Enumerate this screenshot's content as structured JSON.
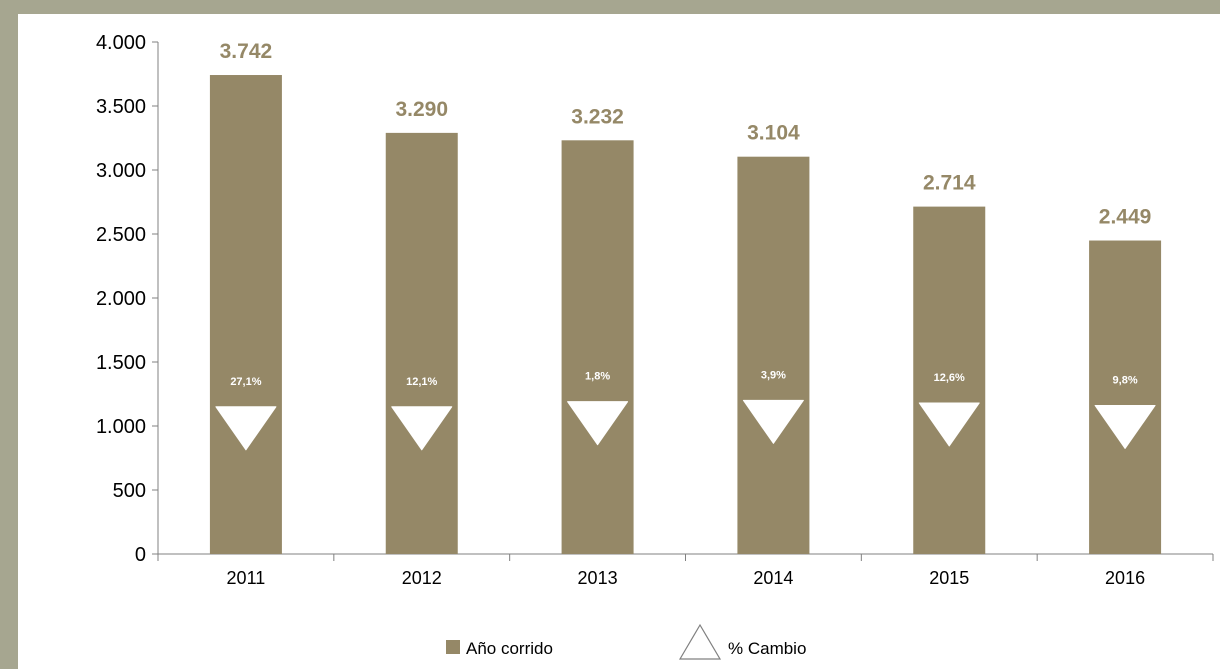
{
  "colors": {
    "bar": "#958867",
    "value_label": "#958867",
    "marker": "#ffffff",
    "axis": "#808080",
    "frame_background": "#a6a690"
  },
  "chart_data": {
    "type": "bar",
    "categories": [
      "2011",
      "2012",
      "2013",
      "2014",
      "2015",
      "2016"
    ],
    "series": [
      {
        "name": "Año corrido",
        "values": [
          3742,
          3290,
          3232,
          3104,
          2714,
          2449
        ],
        "labels": [
          "3.742",
          "3.290",
          "3.232",
          "3.104",
          "2.714",
          "2.449"
        ]
      },
      {
        "name": "% Cambio",
        "marker": "down-triangle",
        "values": [
          27.1,
          12.1,
          1.8,
          3.9,
          12.6,
          9.8
        ],
        "marker_y": [
          1080,
          1080,
          1120,
          1130,
          1110,
          1090
        ],
        "labels": [
          "27,1%",
          "12,1%",
          "1,8%",
          "3,9%",
          "12,6%",
          "9,8%"
        ]
      }
    ],
    "y_ticks": [
      0,
      500,
      1000,
      1500,
      2000,
      2500,
      3000,
      3500,
      4000
    ],
    "y_tick_labels": [
      "0",
      "500",
      "1.000",
      "1.500",
      "2.000",
      "2.500",
      "3.000",
      "3.500",
      "4.000"
    ],
    "ylim": [
      0,
      4000
    ],
    "grid": false,
    "legend_position": "bottom"
  }
}
